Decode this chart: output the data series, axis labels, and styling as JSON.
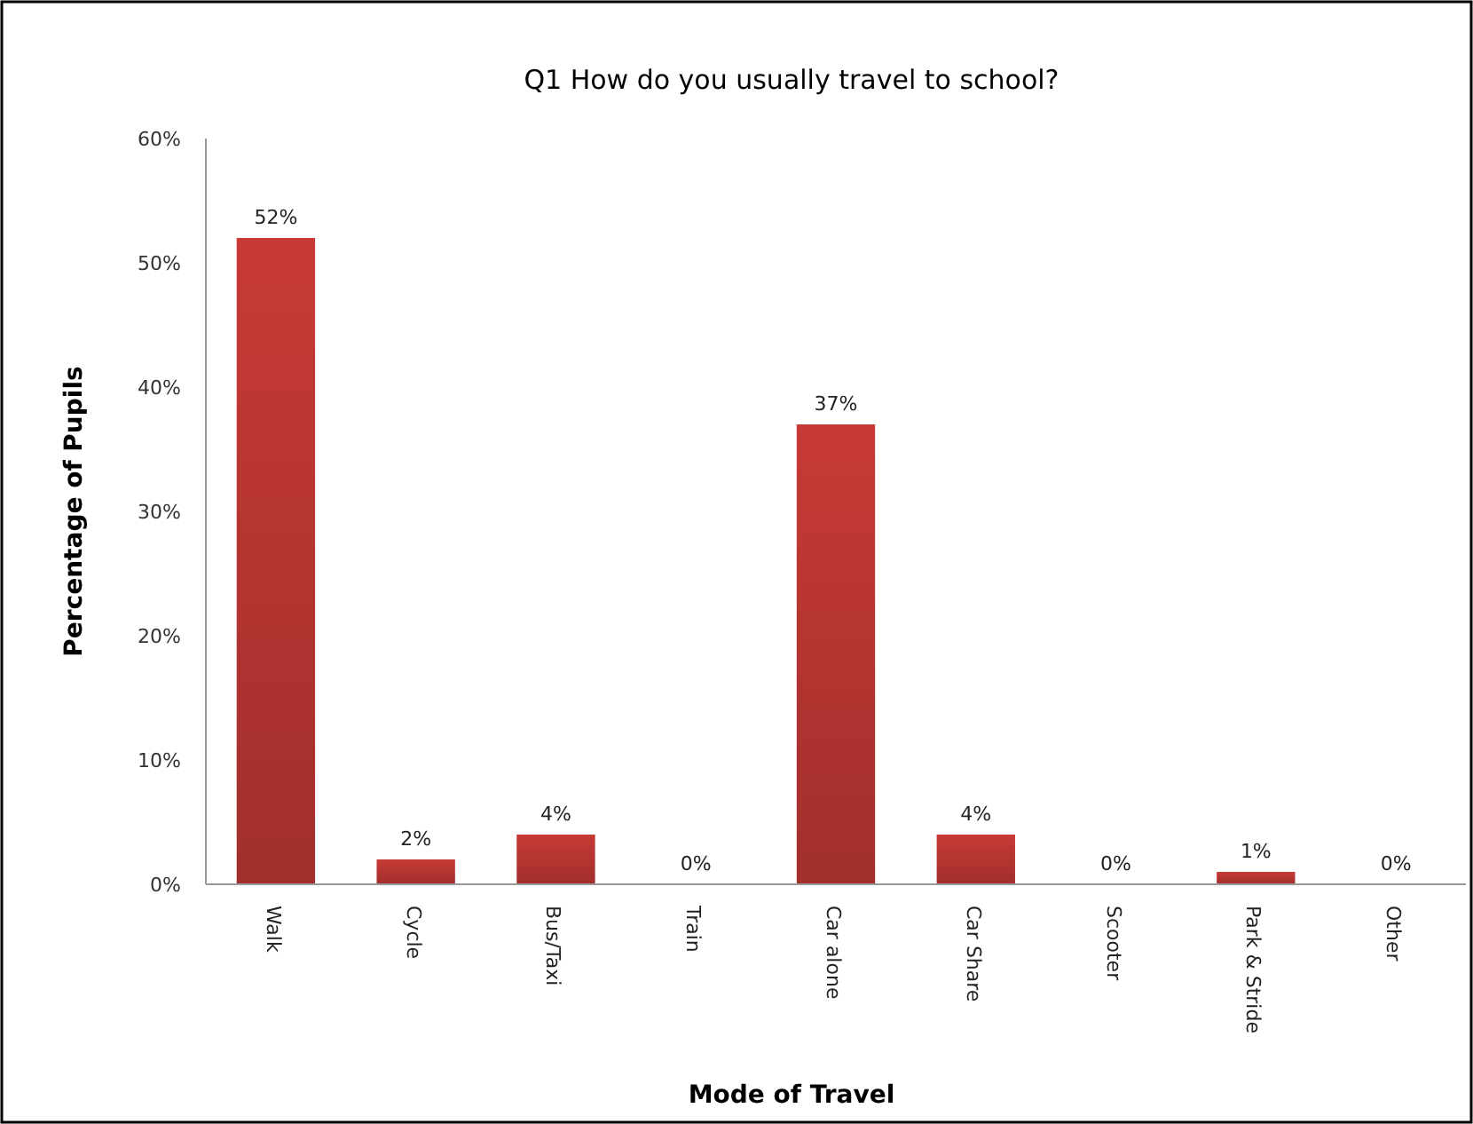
{
  "chart_data": {
    "type": "bar",
    "title": "Q1 How do you usually travel to school?",
    "xlabel": "Mode of Travel",
    "ylabel": "Percentage of Pupils",
    "categories": [
      "Walk",
      "Cycle",
      "Bus/Taxi",
      "Train",
      "Car alone",
      "Car Share",
      "Scooter",
      "Park & Stride",
      "Other"
    ],
    "values": [
      52,
      2,
      4,
      0,
      37,
      4,
      0,
      1,
      0
    ],
    "value_labels": [
      "52%",
      "2%",
      "4%",
      "0%",
      "37%",
      "4%",
      "0%",
      "1%",
      "0%"
    ],
    "color": "#c73a36",
    "ylim": [
      0,
      60
    ],
    "yticks": [
      {
        "value": 0,
        "label": "0%"
      },
      {
        "value": 10,
        "label": "10%"
      },
      {
        "value": 20,
        "label": "20%"
      },
      {
        "value": 30,
        "label": "30%"
      },
      {
        "value": 40,
        "label": "40%"
      },
      {
        "value": 50,
        "label": "50%"
      },
      {
        "value": 60,
        "label": "60%"
      }
    ],
    "grid": false
  }
}
